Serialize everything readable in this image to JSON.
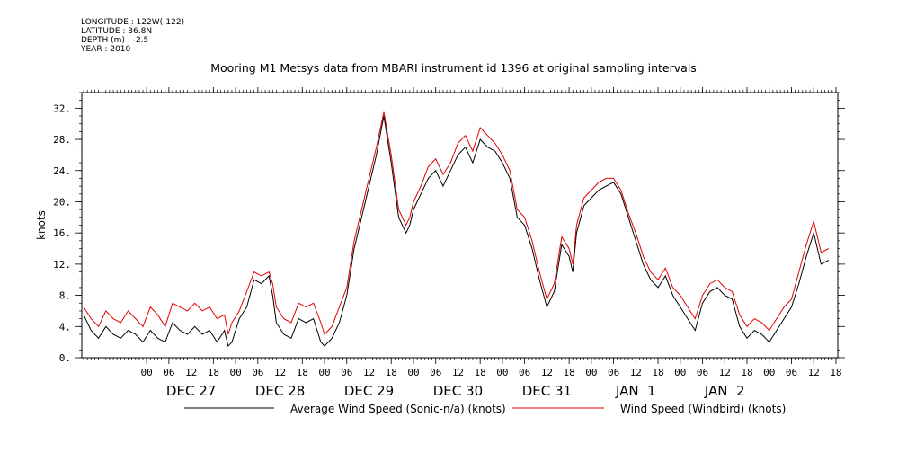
{
  "meta": {
    "longitude": "LONGITUDE : 122W(-122)",
    "latitude": "LATITUDE : 36.8N",
    "depth": "DEPTH (m) : -2.5",
    "year": "YEAR : 2010"
  },
  "chart_data": {
    "type": "line",
    "title": "Mooring M1 Metsys data from MBARI instrument id 1396 at original sampling intervals",
    "ylabel": "knots",
    "xlabel": "",
    "ylim": [
      0,
      34
    ],
    "yticks": [
      0,
      4,
      8,
      12,
      16,
      20,
      24,
      28,
      32
    ],
    "ytick_labels": [
      "0.",
      "4.",
      "8.",
      "12.",
      "16.",
      "20.",
      "24.",
      "28.",
      "32."
    ],
    "xlim_hours": [
      -17.5,
      186.5
    ],
    "hour_ticks": [
      {
        "h": 0,
        "label": "00"
      },
      {
        "h": 6,
        "label": "06"
      },
      {
        "h": 12,
        "label": "12"
      },
      {
        "h": 18,
        "label": "18"
      },
      {
        "h": 24,
        "label": "00"
      },
      {
        "h": 30,
        "label": "06"
      },
      {
        "h": 36,
        "label": "12"
      },
      {
        "h": 42,
        "label": "18"
      },
      {
        "h": 48,
        "label": "00"
      },
      {
        "h": 54,
        "label": "06"
      },
      {
        "h": 60,
        "label": "12"
      },
      {
        "h": 66,
        "label": "18"
      },
      {
        "h": 72,
        "label": "00"
      },
      {
        "h": 78,
        "label": "06"
      },
      {
        "h": 84,
        "label": "12"
      },
      {
        "h": 90,
        "label": "18"
      },
      {
        "h": 96,
        "label": "00"
      },
      {
        "h": 102,
        "label": "06"
      },
      {
        "h": 108,
        "label": "12"
      },
      {
        "h": 114,
        "label": "18"
      },
      {
        "h": 120,
        "label": "00"
      },
      {
        "h": 126,
        "label": "06"
      },
      {
        "h": 132,
        "label": "12"
      },
      {
        "h": 138,
        "label": "18"
      },
      {
        "h": 144,
        "label": "00"
      },
      {
        "h": 150,
        "label": "06"
      },
      {
        "h": 156,
        "label": "12"
      },
      {
        "h": 162,
        "label": "18"
      },
      {
        "h": 168,
        "label": "00"
      },
      {
        "h": 174,
        "label": "06"
      },
      {
        "h": 180,
        "label": "12"
      },
      {
        "h": 186,
        "label": "18"
      }
    ],
    "day_labels": [
      {
        "h": 12,
        "label": "DEC 27"
      },
      {
        "h": 36,
        "label": "DEC 28"
      },
      {
        "h": 60,
        "label": "DEC 29"
      },
      {
        "h": 84,
        "label": "DEC 30"
      },
      {
        "h": 108,
        "label": "DEC 31"
      },
      {
        "h": 132,
        "label": "JAN  1"
      },
      {
        "h": 156,
        "label": "JAN  2"
      }
    ],
    "series": [
      {
        "name": "Average Wind Speed (Sonic-n/a) (knots)",
        "color": "#000000",
        "points": [
          [
            -17,
            5.5
          ],
          [
            -15,
            3.5
          ],
          [
            -13,
            2.5
          ],
          [
            -11,
            4.0
          ],
          [
            -9,
            3.0
          ],
          [
            -7,
            2.5
          ],
          [
            -5,
            3.5
          ],
          [
            -3,
            3.0
          ],
          [
            -1,
            2.0
          ],
          [
            1,
            3.5
          ],
          [
            3,
            2.5
          ],
          [
            5,
            2.0
          ],
          [
            7,
            4.5
          ],
          [
            9,
            3.5
          ],
          [
            11,
            3.0
          ],
          [
            13,
            4.0
          ],
          [
            15,
            3.0
          ],
          [
            17,
            3.5
          ],
          [
            19,
            2.0
          ],
          [
            21,
            3.5
          ],
          [
            22,
            1.5
          ],
          [
            23,
            2.0
          ],
          [
            25,
            5.0
          ],
          [
            27,
            6.5
          ],
          [
            29,
            10.0
          ],
          [
            31,
            9.5
          ],
          [
            33,
            10.5
          ],
          [
            34,
            8.0
          ],
          [
            35,
            4.5
          ],
          [
            37,
            3.0
          ],
          [
            39,
            2.5
          ],
          [
            41,
            5.0
          ],
          [
            43,
            4.5
          ],
          [
            45,
            5.0
          ],
          [
            47,
            2.0
          ],
          [
            48,
            1.5
          ],
          [
            50,
            2.5
          ],
          [
            52,
            4.5
          ],
          [
            54,
            8.0
          ],
          [
            56,
            14.0
          ],
          [
            58,
            18.0
          ],
          [
            60,
            22.0
          ],
          [
            62,
            26.0
          ],
          [
            64,
            31.0
          ],
          [
            66,
            25.0
          ],
          [
            68,
            18.0
          ],
          [
            70,
            16.0
          ],
          [
            71,
            17.0
          ],
          [
            72,
            19.0
          ],
          [
            74,
            21.0
          ],
          [
            76,
            23.0
          ],
          [
            78,
            24.0
          ],
          [
            80,
            22.0
          ],
          [
            82,
            24.0
          ],
          [
            84,
            26.0
          ],
          [
            86,
            27.0
          ],
          [
            88,
            25.0
          ],
          [
            90,
            28.0
          ],
          [
            92,
            27.0
          ],
          [
            94,
            26.5
          ],
          [
            96,
            25.0
          ],
          [
            98,
            23.0
          ],
          [
            100,
            18.0
          ],
          [
            102,
            17.0
          ],
          [
            104,
            14.0
          ],
          [
            106,
            10.0
          ],
          [
            108,
            6.5
          ],
          [
            110,
            8.5
          ],
          [
            112,
            14.5
          ],
          [
            114,
            13.0
          ],
          [
            115,
            11.0
          ],
          [
            116,
            16.0
          ],
          [
            118,
            19.5
          ],
          [
            120,
            20.5
          ],
          [
            122,
            21.5
          ],
          [
            124,
            22.0
          ],
          [
            126,
            22.5
          ],
          [
            128,
            21.0
          ],
          [
            130,
            18.0
          ],
          [
            132,
            15.0
          ],
          [
            134,
            12.0
          ],
          [
            136,
            10.0
          ],
          [
            138,
            9.0
          ],
          [
            140,
            10.5
          ],
          [
            142,
            8.0
          ],
          [
            144,
            6.5
          ],
          [
            146,
            5.0
          ],
          [
            148,
            3.5
          ],
          [
            150,
            7.0
          ],
          [
            152,
            8.5
          ],
          [
            154,
            9.0
          ],
          [
            156,
            8.0
          ],
          [
            158,
            7.5
          ],
          [
            160,
            4.0
          ],
          [
            162,
            2.5
          ],
          [
            164,
            3.5
          ],
          [
            166,
            3.0
          ],
          [
            168,
            2.0
          ],
          [
            170,
            3.5
          ],
          [
            172,
            5.0
          ],
          [
            174,
            6.5
          ],
          [
            176,
            9.5
          ],
          [
            178,
            13.0
          ],
          [
            180,
            16.0
          ],
          [
            182,
            12.0
          ],
          [
            184,
            12.5
          ]
        ]
      },
      {
        "name": "Wind Speed (Windbird) (knots)",
        "color": "#e00000",
        "points": [
          [
            -17,
            6.5
          ],
          [
            -15,
            5.0
          ],
          [
            -13,
            4.0
          ],
          [
            -11,
            6.0
          ],
          [
            -9,
            5.0
          ],
          [
            -7,
            4.5
          ],
          [
            -5,
            6.0
          ],
          [
            -3,
            5.0
          ],
          [
            -1,
            4.0
          ],
          [
            1,
            6.5
          ],
          [
            3,
            5.5
          ],
          [
            5,
            4.0
          ],
          [
            7,
            7.0
          ],
          [
            9,
            6.5
          ],
          [
            11,
            6.0
          ],
          [
            13,
            7.0
          ],
          [
            15,
            6.0
          ],
          [
            17,
            6.5
          ],
          [
            19,
            5.0
          ],
          [
            21,
            5.5
          ],
          [
            22,
            3.0
          ],
          [
            23,
            4.5
          ],
          [
            25,
            6.0
          ],
          [
            27,
            8.5
          ],
          [
            29,
            11.0
          ],
          [
            31,
            10.5
          ],
          [
            33,
            11.0
          ],
          [
            34,
            9.5
          ],
          [
            35,
            6.5
          ],
          [
            37,
            5.0
          ],
          [
            39,
            4.5
          ],
          [
            41,
            7.0
          ],
          [
            43,
            6.5
          ],
          [
            45,
            7.0
          ],
          [
            47,
            4.5
          ],
          [
            48,
            3.0
          ],
          [
            50,
            4.0
          ],
          [
            52,
            6.5
          ],
          [
            54,
            9.0
          ],
          [
            56,
            15.0
          ],
          [
            58,
            19.0
          ],
          [
            60,
            23.0
          ],
          [
            62,
            27.0
          ],
          [
            64,
            31.5
          ],
          [
            66,
            26.0
          ],
          [
            68,
            19.0
          ],
          [
            70,
            17.0
          ],
          [
            71,
            18.0
          ],
          [
            72,
            20.0
          ],
          [
            74,
            22.0
          ],
          [
            76,
            24.5
          ],
          [
            78,
            25.5
          ],
          [
            80,
            23.5
          ],
          [
            82,
            25.0
          ],
          [
            84,
            27.5
          ],
          [
            86,
            28.5
          ],
          [
            88,
            26.5
          ],
          [
            90,
            29.5
          ],
          [
            92,
            28.5
          ],
          [
            94,
            27.5
          ],
          [
            96,
            26.0
          ],
          [
            98,
            24.0
          ],
          [
            100,
            19.0
          ],
          [
            102,
            18.0
          ],
          [
            104,
            15.0
          ],
          [
            106,
            11.0
          ],
          [
            108,
            7.5
          ],
          [
            110,
            9.5
          ],
          [
            112,
            15.5
          ],
          [
            114,
            14.0
          ],
          [
            115,
            12.0
          ],
          [
            116,
            17.0
          ],
          [
            118,
            20.5
          ],
          [
            120,
            21.5
          ],
          [
            122,
            22.5
          ],
          [
            124,
            23.0
          ],
          [
            126,
            23.0
          ],
          [
            128,
            21.5
          ],
          [
            130,
            18.5
          ],
          [
            132,
            16.0
          ],
          [
            134,
            13.0
          ],
          [
            136,
            11.0
          ],
          [
            138,
            10.0
          ],
          [
            140,
            11.5
          ],
          [
            142,
            9.0
          ],
          [
            144,
            8.0
          ],
          [
            146,
            6.5
          ],
          [
            148,
            5.0
          ],
          [
            150,
            8.0
          ],
          [
            152,
            9.5
          ],
          [
            154,
            10.0
          ],
          [
            156,
            9.0
          ],
          [
            158,
            8.5
          ],
          [
            160,
            5.5
          ],
          [
            162,
            4.0
          ],
          [
            164,
            5.0
          ],
          [
            166,
            4.5
          ],
          [
            168,
            3.5
          ],
          [
            170,
            5.0
          ],
          [
            172,
            6.5
          ],
          [
            174,
            7.5
          ],
          [
            176,
            11.0
          ],
          [
            178,
            14.5
          ],
          [
            180,
            17.5
          ],
          [
            182,
            13.5
          ],
          [
            184,
            14.0
          ]
        ]
      }
    ],
    "legend_placement": "bottom",
    "grid": false
  }
}
